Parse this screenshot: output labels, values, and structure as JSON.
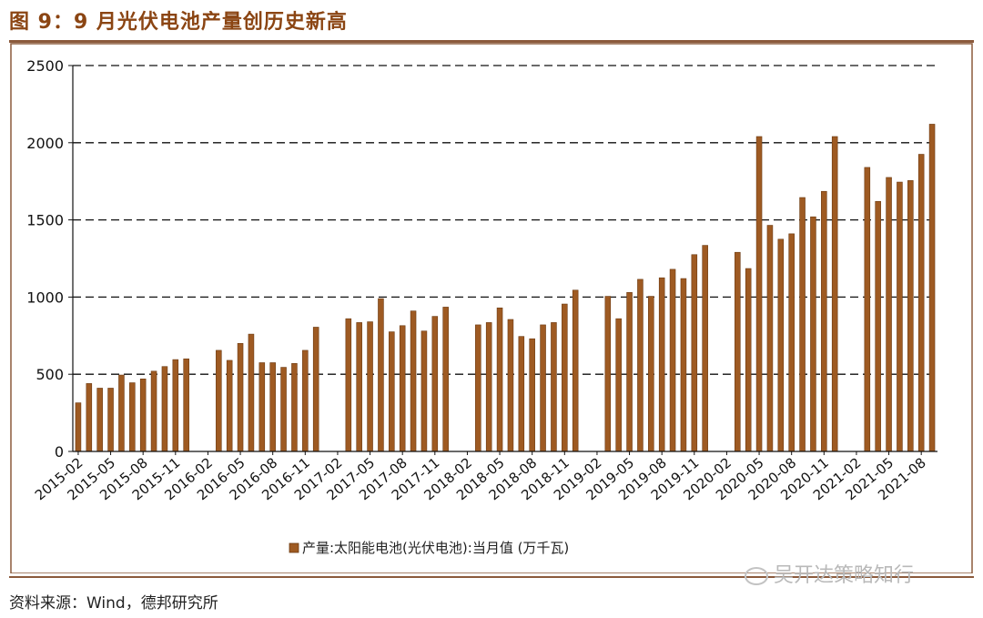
{
  "header": {
    "title": "图 9：9 月光伏电池产量创历史新高"
  },
  "footer": {
    "source": "资料来源：Wind，德邦研究所",
    "watermark": "吴开达策略知行"
  },
  "colors": {
    "bar": "#9E5A22",
    "bar_edge": "#6B3A12",
    "frame": "#8B5A3C",
    "title": "#8B4513"
  },
  "chart_data": {
    "type": "bar",
    "title": "",
    "xlabel": "",
    "ylabel": "",
    "ylim": [
      0,
      2500
    ],
    "yticks": [
      0,
      500,
      1000,
      1500,
      2000,
      2500
    ],
    "grid": "dashed-horizontal",
    "legend": {
      "position": "bottom-center",
      "label": "产量:太阳能电池(光伏电池):当月值 (万千瓦)"
    },
    "categories": [
      "2015-02",
      "2015-03",
      "2015-04",
      "2015-05",
      "2015-06",
      "2015-07",
      "2015-08",
      "2015-09",
      "2015-10",
      "2015-11",
      "2015-12",
      "2016-01",
      "2016-02",
      "2016-03",
      "2016-04",
      "2016-05",
      "2016-06",
      "2016-07",
      "2016-08",
      "2016-09",
      "2016-10",
      "2016-11",
      "2016-12",
      "2017-01",
      "2017-02",
      "2017-03",
      "2017-04",
      "2017-05",
      "2017-06",
      "2017-07",
      "2017-08",
      "2017-09",
      "2017-10",
      "2017-11",
      "2017-12",
      "2018-01",
      "2018-02",
      "2018-03",
      "2018-04",
      "2018-05",
      "2018-06",
      "2018-07",
      "2018-08",
      "2018-09",
      "2018-10",
      "2018-11",
      "2018-12",
      "2019-01",
      "2019-02",
      "2019-03",
      "2019-04",
      "2019-05",
      "2019-06",
      "2019-07",
      "2019-08",
      "2019-09",
      "2019-10",
      "2019-11",
      "2019-12",
      "2020-01",
      "2020-02",
      "2020-03",
      "2020-04",
      "2020-05",
      "2020-06",
      "2020-07",
      "2020-08",
      "2020-09",
      "2020-10",
      "2020-11",
      "2020-12",
      "2021-01",
      "2021-02",
      "2021-03",
      "2021-04",
      "2021-05",
      "2021-06",
      "2021-07",
      "2021-08",
      "2021-09"
    ],
    "tick_labels": [
      "2015-02",
      "2015-05",
      "2015-08",
      "2015-11",
      "2016-02",
      "2016-05",
      "2016-08",
      "2016-11",
      "2017-02",
      "2017-05",
      "2017-08",
      "2017-11",
      "2018-02",
      "2018-05",
      "2018-08",
      "2018-11",
      "2019-02",
      "2019-05",
      "2019-08",
      "2019-11",
      "2020-02",
      "2020-05",
      "2020-08",
      "2020-11",
      "2021-02",
      "2021-05",
      "2021-08"
    ],
    "values": [
      315,
      440,
      410,
      410,
      495,
      445,
      470,
      520,
      550,
      595,
      600,
      null,
      null,
      655,
      590,
      700,
      760,
      575,
      575,
      545,
      570,
      655,
      805,
      null,
      null,
      860,
      835,
      840,
      990,
      775,
      815,
      910,
      780,
      875,
      935,
      null,
      null,
      820,
      835,
      930,
      855,
      745,
      730,
      820,
      835,
      955,
      1045,
      null,
      null,
      1005,
      860,
      1030,
      1115,
      1005,
      1125,
      1180,
      1120,
      1275,
      1335,
      null,
      null,
      1290,
      1185,
      2040,
      1465,
      1375,
      1410,
      1645,
      1520,
      1685,
      2040,
      null,
      null,
      1840,
      1620,
      1775,
      1745,
      1755,
      1925,
      2120
    ]
  }
}
